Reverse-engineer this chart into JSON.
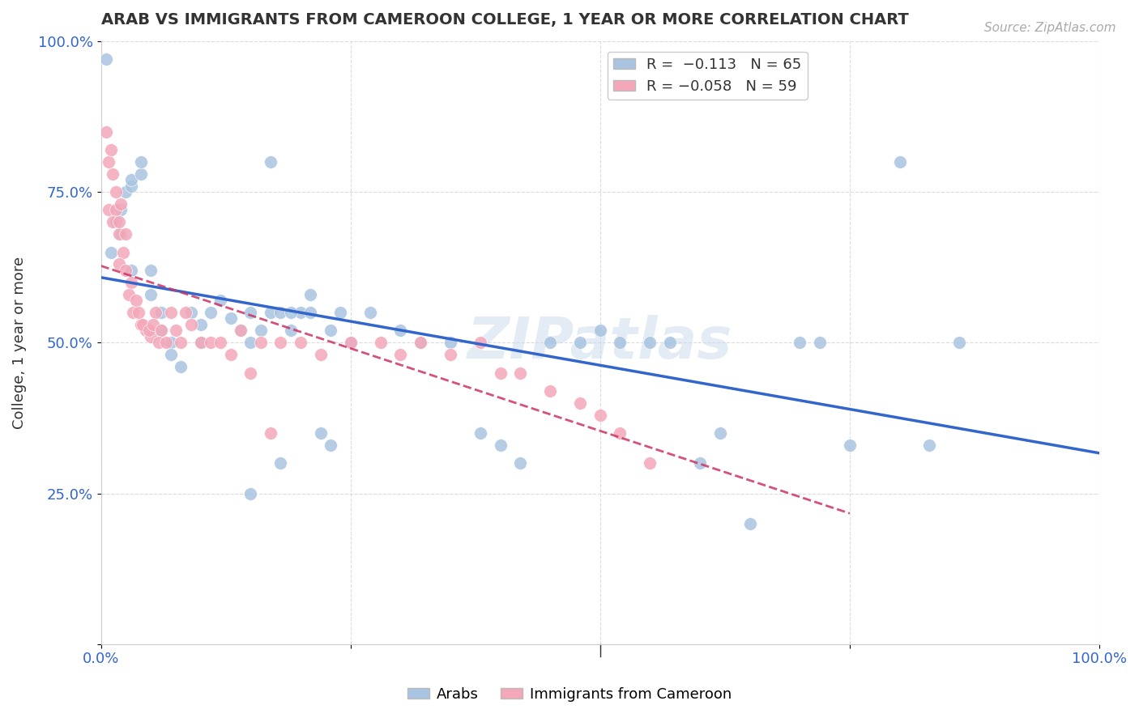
{
  "title": "ARAB VS IMMIGRANTS FROM CAMEROON COLLEGE, 1 YEAR OR MORE CORRELATION CHART",
  "source": "Source: ZipAtlas.com",
  "ylabel": "College, 1 year or more",
  "xlim": [
    0,
    1
  ],
  "ylim": [
    0,
    1
  ],
  "xticklabels": [
    "0.0%",
    "",
    "",
    "",
    "100.0%"
  ],
  "yticklabels": [
    "",
    "25.0%",
    "50.0%",
    "75.0%",
    "100.0%"
  ],
  "legend_labels": [
    "Arabs",
    "Immigrants from Cameroon"
  ],
  "blue_color": "#a8c4e0",
  "pink_color": "#f4a7b9",
  "blue_line_color": "#3366cc",
  "pink_line_color": "#cc3366",
  "blue_R": -0.113,
  "blue_N": 65,
  "pink_R": -0.058,
  "pink_N": 59,
  "watermark": "ZIPatlas",
  "blue_scatter_x": [
    0.005,
    0.01,
    0.015,
    0.02,
    0.02,
    0.025,
    0.03,
    0.03,
    0.03,
    0.04,
    0.04,
    0.05,
    0.05,
    0.06,
    0.06,
    0.07,
    0.07,
    0.08,
    0.09,
    0.1,
    0.1,
    0.11,
    0.12,
    0.13,
    0.14,
    0.15,
    0.15,
    0.16,
    0.17,
    0.18,
    0.18,
    0.19,
    0.2,
    0.21,
    0.22,
    0.23,
    0.24,
    0.25,
    0.27,
    0.3,
    0.32,
    0.35,
    0.38,
    0.4,
    0.42,
    0.45,
    0.48,
    0.5,
    0.52,
    0.55,
    0.57,
    0.6,
    0.62,
    0.65,
    0.7,
    0.72,
    0.75,
    0.8,
    0.83,
    0.86,
    0.17,
    0.19,
    0.21,
    0.23,
    0.15
  ],
  "blue_scatter_y": [
    0.97,
    0.65,
    0.7,
    0.68,
    0.72,
    0.75,
    0.76,
    0.62,
    0.77,
    0.78,
    0.8,
    0.62,
    0.58,
    0.55,
    0.52,
    0.5,
    0.48,
    0.46,
    0.55,
    0.53,
    0.5,
    0.55,
    0.57,
    0.54,
    0.52,
    0.55,
    0.5,
    0.52,
    0.55,
    0.3,
    0.55,
    0.52,
    0.55,
    0.58,
    0.35,
    0.52,
    0.55,
    0.5,
    0.55,
    0.52,
    0.5,
    0.5,
    0.35,
    0.33,
    0.3,
    0.5,
    0.5,
    0.52,
    0.5,
    0.5,
    0.5,
    0.3,
    0.35,
    0.2,
    0.5,
    0.5,
    0.33,
    0.8,
    0.33,
    0.5,
    0.8,
    0.55,
    0.55,
    0.33,
    0.25
  ],
  "pink_scatter_x": [
    0.005,
    0.008,
    0.01,
    0.012,
    0.015,
    0.008,
    0.012,
    0.018,
    0.015,
    0.02,
    0.018,
    0.025,
    0.022,
    0.018,
    0.025,
    0.03,
    0.028,
    0.035,
    0.032,
    0.04,
    0.038,
    0.045,
    0.042,
    0.05,
    0.048,
    0.055,
    0.052,
    0.06,
    0.058,
    0.065,
    0.07,
    0.075,
    0.08,
    0.085,
    0.09,
    0.1,
    0.11,
    0.12,
    0.13,
    0.14,
    0.15,
    0.16,
    0.17,
    0.18,
    0.2,
    0.22,
    0.25,
    0.28,
    0.3,
    0.32,
    0.35,
    0.38,
    0.4,
    0.42,
    0.45,
    0.48,
    0.5,
    0.52,
    0.55
  ],
  "pink_scatter_y": [
    0.85,
    0.8,
    0.82,
    0.78,
    0.75,
    0.72,
    0.7,
    0.68,
    0.72,
    0.73,
    0.7,
    0.68,
    0.65,
    0.63,
    0.62,
    0.6,
    0.58,
    0.57,
    0.55,
    0.53,
    0.55,
    0.52,
    0.53,
    0.51,
    0.52,
    0.55,
    0.53,
    0.52,
    0.5,
    0.5,
    0.55,
    0.52,
    0.5,
    0.55,
    0.53,
    0.5,
    0.5,
    0.5,
    0.48,
    0.52,
    0.45,
    0.5,
    0.35,
    0.5,
    0.5,
    0.48,
    0.5,
    0.5,
    0.48,
    0.5,
    0.48,
    0.5,
    0.45,
    0.45,
    0.42,
    0.4,
    0.38,
    0.35,
    0.3
  ]
}
